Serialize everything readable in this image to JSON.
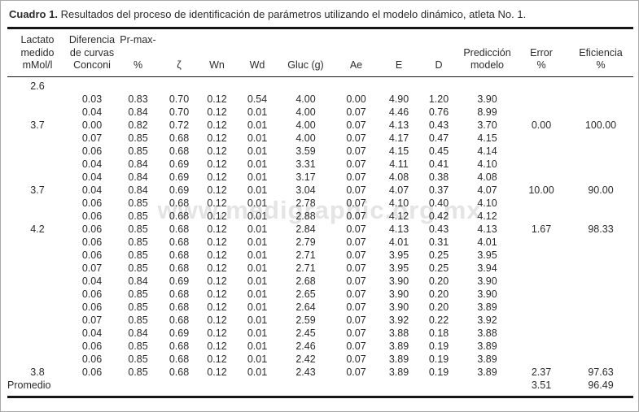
{
  "title": {
    "label": "Cuadro 1.",
    "text": "Resultados del proceso de identificación de parámetros utilizando el modelo dinámico, atleta No. 1."
  },
  "watermark": "www.medigraphic.org.mx",
  "table": {
    "headers": [
      "Lactato\nmedido\nmMol/l",
      "Diferencia\nde curvas\nConconi",
      "Pr-max-\n\n%",
      "ζ",
      "Wn",
      "Wd",
      "Gluc (g)",
      "Ae",
      "E",
      "D",
      "Predicción\nmodelo",
      "Error\n%",
      "Eficiencia\n%"
    ],
    "rows": [
      [
        "2.6",
        "",
        "",
        "",
        "",
        "",
        "",
        "",
        "",
        "",
        "",
        "",
        ""
      ],
      [
        "",
        "0.03",
        "0.83",
        "0.70",
        "0.12",
        "0.54",
        "4.00",
        "0.00",
        "4.90",
        "1.20",
        "3.90",
        "",
        ""
      ],
      [
        "",
        "0.04",
        "0.84",
        "0.70",
        "0.12",
        "0.01",
        "4.00",
        "0.07",
        "4.46",
        "0.76",
        "8.99",
        "",
        ""
      ],
      [
        "3.7",
        "0.00",
        "0.82",
        "0.72",
        "0.12",
        "0.01",
        "4.00",
        "0.07",
        "4.13",
        "0.43",
        "3.70",
        "0.00",
        "100.00"
      ],
      [
        "",
        "0.07",
        "0.85",
        "0.68",
        "0.12",
        "0.01",
        "4.00",
        "0.07",
        "4.17",
        "0.47",
        "4.15",
        "",
        ""
      ],
      [
        "",
        "0.06",
        "0.85",
        "0.68",
        "0.12",
        "0.01",
        "3.59",
        "0.07",
        "4.15",
        "0.45",
        "4.14",
        "",
        ""
      ],
      [
        "",
        "0.04",
        "0.84",
        "0.69",
        "0.12",
        "0.01",
        "3.31",
        "0.07",
        "4.11",
        "0.41",
        "4.10",
        "",
        ""
      ],
      [
        "",
        "0.04",
        "0.84",
        "0.69",
        "0.12",
        "0.01",
        "3.17",
        "0.07",
        "4.08",
        "0.38",
        "4.08",
        "",
        ""
      ],
      [
        "3.7",
        "0.04",
        "0.84",
        "0.69",
        "0.12",
        "0.01",
        "3.04",
        "0.07",
        "4.07",
        "0.37",
        "4.07",
        "10.00",
        "90.00"
      ],
      [
        "",
        "0.06",
        "0.85",
        "0.68",
        "0.12",
        "0.01",
        "2.78",
        "0.07",
        "4.10",
        "0.40",
        "4.10",
        "",
        ""
      ],
      [
        "",
        "0.06",
        "0.85",
        "0.68",
        "0.12",
        "0.01",
        "2.88",
        "0.07",
        "4.12",
        "0.42",
        "4.12",
        "",
        ""
      ],
      [
        "4.2",
        "0.06",
        "0.85",
        "0.68",
        "0.12",
        "0.01",
        "2.84",
        "0.07",
        "4.13",
        "0.43",
        "4.13",
        "1.67",
        "98.33"
      ],
      [
        "",
        "0.06",
        "0.85",
        "0.68",
        "0.12",
        "0.01",
        "2.79",
        "0.07",
        "4.01",
        "0.31",
        "4.01",
        "",
        ""
      ],
      [
        "",
        "0.06",
        "0.85",
        "0.68",
        "0.12",
        "0.01",
        "2.71",
        "0.07",
        "3.95",
        "0.25",
        "3.95",
        "",
        ""
      ],
      [
        "",
        "0.07",
        "0.85",
        "0.68",
        "0.12",
        "0.01",
        "2.71",
        "0.07",
        "3.95",
        "0.25",
        "3.94",
        "",
        ""
      ],
      [
        "",
        "0.04",
        "0.84",
        "0.69",
        "0.12",
        "0.01",
        "2.68",
        "0.07",
        "3.90",
        "0.20",
        "3.90",
        "",
        ""
      ],
      [
        "",
        "0.06",
        "0.85",
        "0.68",
        "0.12",
        "0.01",
        "2.65",
        "0.07",
        "3.90",
        "0.20",
        "3.90",
        "",
        ""
      ],
      [
        "",
        "0.06",
        "0.85",
        "0.68",
        "0.12",
        "0.01",
        "2.64",
        "0.07",
        "3.90",
        "0.20",
        "3.89",
        "",
        ""
      ],
      [
        "",
        "0.07",
        "0.85",
        "0.68",
        "0.12",
        "0.01",
        "2.59",
        "0.07",
        "3.92",
        "0.22",
        "3.92",
        "",
        ""
      ],
      [
        "",
        "0.04",
        "0.84",
        "0.69",
        "0.12",
        "0.01",
        "2.45",
        "0.07",
        "3.88",
        "0.18",
        "3.88",
        "",
        ""
      ],
      [
        "",
        "0.06",
        "0.85",
        "0.68",
        "0.12",
        "0.01",
        "2.46",
        "0.07",
        "3.89",
        "0.19",
        "3.89",
        "",
        ""
      ],
      [
        "",
        "0.06",
        "0.85",
        "0.68",
        "0.12",
        "0.01",
        "2.42",
        "0.07",
        "3.89",
        "0.19",
        "3.89",
        "",
        ""
      ],
      [
        "3.8",
        "0.06",
        "0.85",
        "0.68",
        "0.12",
        "0.01",
        "2.43",
        "0.07",
        "3.89",
        "0.19",
        "3.89",
        "2.37",
        "97.63"
      ],
      [
        "Promedio",
        "",
        "",
        "",
        "",
        "",
        "",
        "",
        "",
        "",
        "",
        "3.51",
        "96.49"
      ]
    ]
  }
}
